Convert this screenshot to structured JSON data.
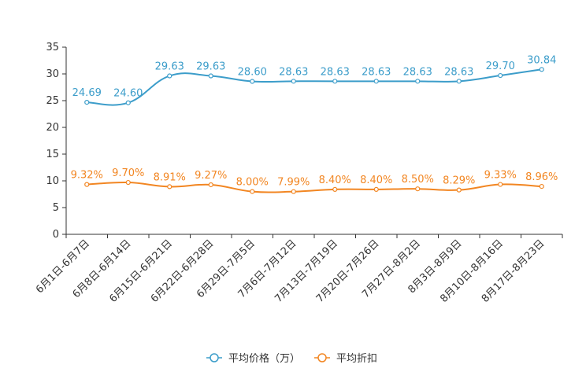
{
  "chart_data": {
    "type": "line",
    "categories": [
      "6月1日-6月7日",
      "6月8日-6月14日",
      "6月15日-6月21日",
      "6月22日-6月28日",
      "6月29日-7月5日",
      "7月6日-7月12日",
      "7月13日-7月19日",
      "7月20日-7月26日",
      "7月27日-8月2日",
      "8月3日-8月9日",
      "8月10日-8月16日",
      "8月17日-8月23日"
    ],
    "ylim": [
      0,
      35
    ],
    "yticks": [
      0,
      5,
      10,
      15,
      20,
      25,
      30,
      35
    ],
    "series": [
      {
        "name": "平均价格（万）",
        "color": "#3c9dca",
        "values": [
          24.69,
          24.6,
          29.63,
          29.63,
          28.6,
          28.63,
          28.63,
          28.63,
          28.63,
          28.63,
          29.7,
          30.84
        ],
        "labels": [
          "24.69",
          "24.60",
          "29.63",
          "29.63",
          "28.60",
          "28.63",
          "28.63",
          "28.63",
          "28.63",
          "28.63",
          "29.70",
          "30.84"
        ]
      },
      {
        "name": "平均折扣",
        "color": "#f28622",
        "values": [
          9.32,
          9.7,
          8.91,
          9.27,
          8.0,
          7.99,
          8.4,
          8.4,
          8.5,
          8.29,
          9.33,
          8.96
        ],
        "labels": [
          "9.32%",
          "9.70%",
          "8.91%",
          "9.27%",
          "8.00%",
          "7.99%",
          "8.40%",
          "8.40%",
          "8.50%",
          "8.29%",
          "9.33%",
          "8.96%"
        ]
      }
    ],
    "legend": "bottom-center",
    "grid": false
  }
}
